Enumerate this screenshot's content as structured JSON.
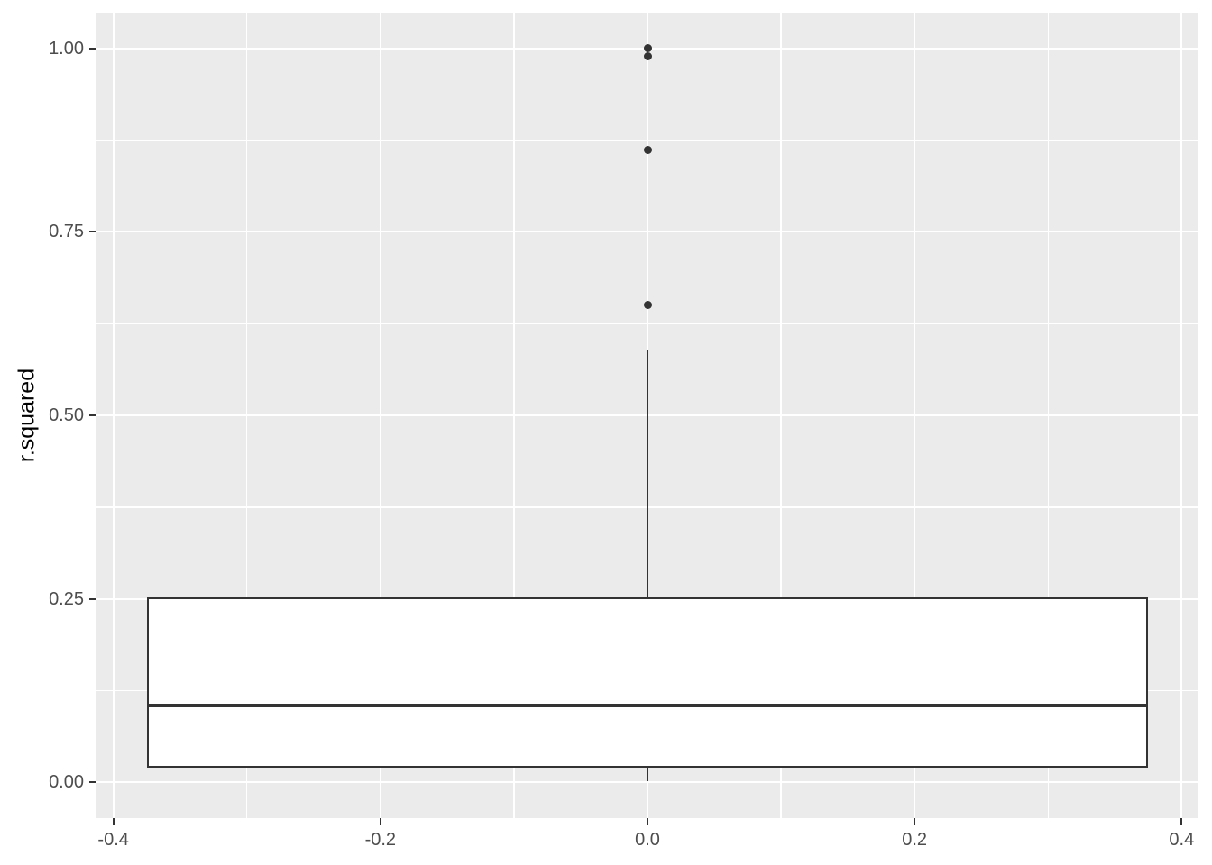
{
  "figure": {
    "panel_background": "#EBEBEB",
    "outer_background": "#FFFFFF",
    "gridline_color": "#FFFFFF",
    "geometry_color": "#333333",
    "tick_label_color": "#4D4D4D",
    "axis_title_color": "#000000"
  },
  "chart_data": {
    "type": "boxplot",
    "title": "",
    "xlabel": "",
    "ylabel": "r.squared",
    "grid": true,
    "legend": false,
    "xlim": [
      -0.4126,
      0.4126
    ],
    "ylim": [
      -0.0488,
      1.0488
    ],
    "x_ticks": [
      -0.4,
      -0.2,
      0.0,
      0.2,
      0.4
    ],
    "x_tick_labels": [
      "-0.4",
      "-0.2",
      "0.0",
      "0.2",
      "0.4"
    ],
    "x_minor_ticks": [
      -0.3,
      -0.1,
      0.1,
      0.3
    ],
    "y_ticks": [
      0.0,
      0.25,
      0.5,
      0.75,
      1.0
    ],
    "y_tick_labels": [
      "0.00",
      "0.25",
      "0.50",
      "0.75",
      "1.00"
    ],
    "y_minor_ticks": [
      0.125,
      0.375,
      0.625,
      0.875
    ],
    "boxes": [
      {
        "x": 0.0,
        "box_width": 0.75,
        "whisker_low": 0.002,
        "q1": 0.02,
        "median": 0.105,
        "q3": 0.252,
        "whisker_high": 0.59,
        "outliers": [
          0.65,
          0.861,
          0.989,
          1.0
        ]
      }
    ]
  }
}
